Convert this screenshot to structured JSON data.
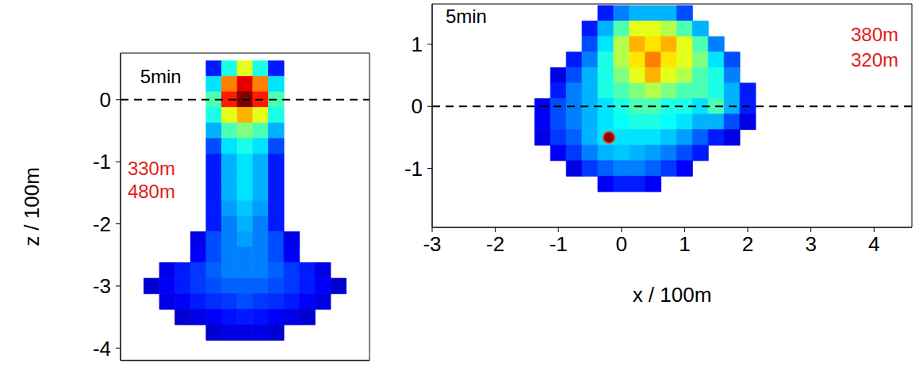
{
  "chart_data": [
    {
      "type": "heatmap",
      "y_label": "z / 100m",
      "xlim": [
        -2,
        2
      ],
      "xticks": [
        -1,
        0,
        1
      ],
      "ylim": [
        -4.2,
        0.75
      ],
      "yticks": [
        0,
        -1,
        -2,
        -3,
        -4
      ],
      "tick_labels": "y",
      "hline": 0,
      "annotations": [
        {
          "text": "5min",
          "color": "#000000"
        },
        {
          "text": "330m",
          "color": "#e02020"
        },
        {
          "text": "480m",
          "color": "#e02020"
        }
      ],
      "value_range": [
        0,
        1
      ],
      "cells": {
        "x": [
          -1.5,
          -1.25,
          -1,
          -0.75,
          -0.5,
          -0.25,
          0,
          0.25,
          0.5,
          0.75,
          1,
          1.25,
          1.5
        ],
        "y": [
          0.5,
          0.25,
          0,
          -0.25,
          -0.5,
          -0.75,
          -1,
          -1.25,
          -1.5,
          -1.75,
          -2,
          -2.25,
          -2.5,
          -2.75,
          -3,
          -3.25,
          -3.5,
          -3.75
        ],
        "values": [
          [
            null,
            null,
            null,
            null,
            0.15,
            0.4,
            0.6,
            0.4,
            0.15,
            null,
            null,
            null,
            null
          ],
          [
            null,
            null,
            null,
            null,
            0.35,
            0.75,
            0.9,
            0.75,
            0.35,
            null,
            null,
            null,
            null
          ],
          [
            null,
            null,
            null,
            null,
            0.45,
            0.85,
            1.0,
            0.85,
            0.45,
            null,
            null,
            null,
            null
          ],
          [
            null,
            null,
            null,
            null,
            0.4,
            0.6,
            0.7,
            0.6,
            0.4,
            null,
            null,
            null,
            null
          ],
          [
            null,
            null,
            null,
            null,
            0.3,
            0.45,
            0.5,
            0.45,
            0.3,
            null,
            null,
            null,
            null
          ],
          [
            null,
            null,
            null,
            null,
            0.2,
            0.35,
            0.4,
            0.35,
            0.2,
            null,
            null,
            null,
            null
          ],
          [
            null,
            null,
            null,
            null,
            0.15,
            0.3,
            0.35,
            0.3,
            0.15,
            null,
            null,
            null,
            null
          ],
          [
            null,
            null,
            null,
            null,
            0.15,
            0.3,
            0.35,
            0.3,
            0.15,
            null,
            null,
            null,
            null
          ],
          [
            null,
            null,
            null,
            null,
            0.15,
            0.3,
            0.35,
            0.3,
            0.15,
            null,
            null,
            null,
            null
          ],
          [
            null,
            null,
            null,
            null,
            0.15,
            0.28,
            0.32,
            0.28,
            0.15,
            null,
            null,
            null,
            null
          ],
          [
            null,
            null,
            null,
            null,
            0.15,
            0.25,
            0.3,
            0.25,
            0.15,
            null,
            null,
            null,
            null
          ],
          [
            null,
            null,
            null,
            0.1,
            0.2,
            0.25,
            0.28,
            0.25,
            0.2,
            0.1,
            null,
            null,
            null
          ],
          [
            null,
            null,
            null,
            0.12,
            0.2,
            0.25,
            0.25,
            0.25,
            0.2,
            0.12,
            null,
            null,
            null
          ],
          [
            null,
            0.1,
            0.15,
            0.18,
            0.22,
            0.25,
            0.25,
            0.25,
            0.22,
            0.18,
            0.15,
            0.1,
            null
          ],
          [
            0.08,
            0.12,
            0.15,
            0.18,
            0.2,
            0.22,
            0.22,
            0.22,
            0.2,
            0.18,
            0.15,
            0.12,
            0.08
          ],
          [
            null,
            0.1,
            0.12,
            0.15,
            0.17,
            0.18,
            0.2,
            0.18,
            0.17,
            0.15,
            0.12,
            0.1,
            null
          ],
          [
            null,
            null,
            0.08,
            0.1,
            0.12,
            0.14,
            0.15,
            0.14,
            0.12,
            0.1,
            0.08,
            null,
            null
          ],
          [
            null,
            null,
            null,
            null,
            0.08,
            0.1,
            0.1,
            0.1,
            0.08,
            null,
            null,
            null,
            null
          ]
        ]
      }
    },
    {
      "type": "heatmap",
      "x_label": "x / 100m",
      "xlim": [
        -3,
        4.6
      ],
      "xticks": [
        -3,
        -2,
        -1,
        0,
        1,
        2,
        3,
        4
      ],
      "ylim": [
        -1.95,
        1.65
      ],
      "yticks": [
        -1,
        0,
        1
      ],
      "tick_labels": true,
      "hline": 0,
      "annotations": [
        {
          "text": "5min",
          "color": "#000000"
        },
        {
          "text": "380m",
          "color": "#e02020"
        },
        {
          "text": "320m",
          "color": "#e02020"
        }
      ],
      "source": {
        "x": -0.2,
        "y": -0.5,
        "color": "#8b0000"
      },
      "value_range": [
        0,
        1
      ],
      "cells": {
        "x": [
          -1.25,
          -1,
          -0.75,
          -0.5,
          -0.25,
          0,
          0.25,
          0.5,
          0.75,
          1,
          1.25,
          1.5,
          1.75,
          2
        ],
        "y": [
          1.5,
          1.25,
          1,
          0.75,
          0.5,
          0.25,
          0,
          -0.25,
          -0.5,
          -0.75,
          -1,
          -1.25
        ],
        "values": [
          [
            null,
            null,
            null,
            null,
            0.15,
            0.25,
            0.3,
            0.3,
            0.3,
            0.2,
            null,
            null,
            null,
            null
          ],
          [
            null,
            null,
            null,
            0.15,
            0.3,
            0.45,
            0.6,
            0.6,
            0.55,
            0.45,
            0.3,
            null,
            null,
            null
          ],
          [
            null,
            null,
            null,
            0.2,
            0.35,
            0.55,
            0.7,
            0.65,
            0.7,
            0.6,
            0.45,
            0.25,
            null,
            null
          ],
          [
            null,
            null,
            0.15,
            0.25,
            0.4,
            0.55,
            0.65,
            0.75,
            0.65,
            0.6,
            0.5,
            0.35,
            0.2,
            null
          ],
          [
            null,
            0.1,
            0.2,
            0.3,
            0.4,
            0.5,
            0.6,
            0.7,
            0.6,
            0.55,
            0.45,
            0.4,
            0.25,
            null
          ],
          [
            null,
            0.15,
            0.25,
            0.3,
            0.4,
            0.45,
            0.5,
            0.55,
            0.5,
            0.45,
            0.45,
            0.4,
            0.3,
            0.15
          ],
          [
            0.12,
            0.2,
            0.25,
            0.3,
            0.35,
            0.4,
            0.45,
            0.45,
            0.4,
            0.4,
            0.35,
            0.45,
            0.3,
            0.15
          ],
          [
            0.12,
            0.2,
            0.25,
            0.3,
            0.35,
            0.38,
            0.4,
            0.4,
            0.38,
            0.35,
            0.3,
            0.3,
            0.2,
            0.1
          ],
          [
            0.1,
            0.18,
            0.22,
            0.3,
            0.35,
            0.35,
            0.35,
            0.35,
            0.32,
            0.28,
            0.22,
            0.15,
            0.1,
            null
          ],
          [
            null,
            0.12,
            0.18,
            0.25,
            0.3,
            0.32,
            0.3,
            0.28,
            0.25,
            0.2,
            0.15,
            null,
            null,
            null
          ],
          [
            null,
            null,
            0.1,
            0.18,
            0.22,
            0.25,
            0.25,
            0.22,
            0.18,
            0.12,
            null,
            null,
            null,
            null
          ],
          [
            null,
            null,
            null,
            null,
            0.12,
            0.15,
            0.15,
            0.12,
            null,
            null,
            null,
            null,
            null,
            null
          ]
        ]
      }
    }
  ]
}
